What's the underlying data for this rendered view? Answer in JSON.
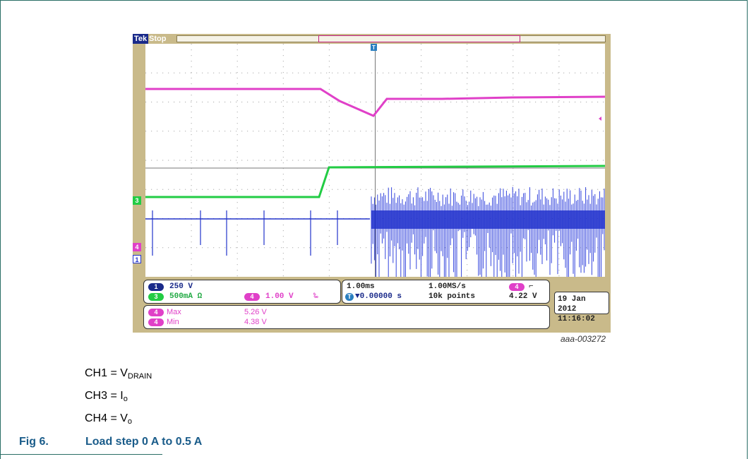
{
  "scope": {
    "brand": "Tek",
    "state": "Stop",
    "trigger_marker": "T",
    "channels": {
      "ch1": {
        "label": "1",
        "scale": "250 V",
        "color": "#2233cc"
      },
      "ch3": {
        "label": "3",
        "scale": "500mA Ω",
        "color": "#22cc44"
      },
      "ch4": {
        "label": "4",
        "scale": "1.00 V",
        "suffix": "‰",
        "color": "#e040c8"
      }
    },
    "timebase": "1.00ms",
    "sample_rate": "1.00MS/s",
    "trigger_offset": "▼0.00000 s",
    "record_length": "10k points",
    "trigger_level": "4.22 V",
    "trigger_symbol": "⌐",
    "measurements": [
      {
        "name": "Max",
        "value": "5.26 V"
      },
      {
        "name": "Min",
        "value": "4.38 V"
      }
    ],
    "date": "19 Jan  2012",
    "time": "11:16:02"
  },
  "figure_id": "aaa-003272",
  "legend": [
    {
      "pre": "CH1 = V",
      "sub": "DRAIN"
    },
    {
      "pre": "CH3 = I",
      "sub": "o"
    },
    {
      "pre": "CH4 = V",
      "sub": "o"
    }
  ],
  "caption": {
    "number": "Fig 6.",
    "title": "Load step 0 A to 0.5 A"
  }
}
